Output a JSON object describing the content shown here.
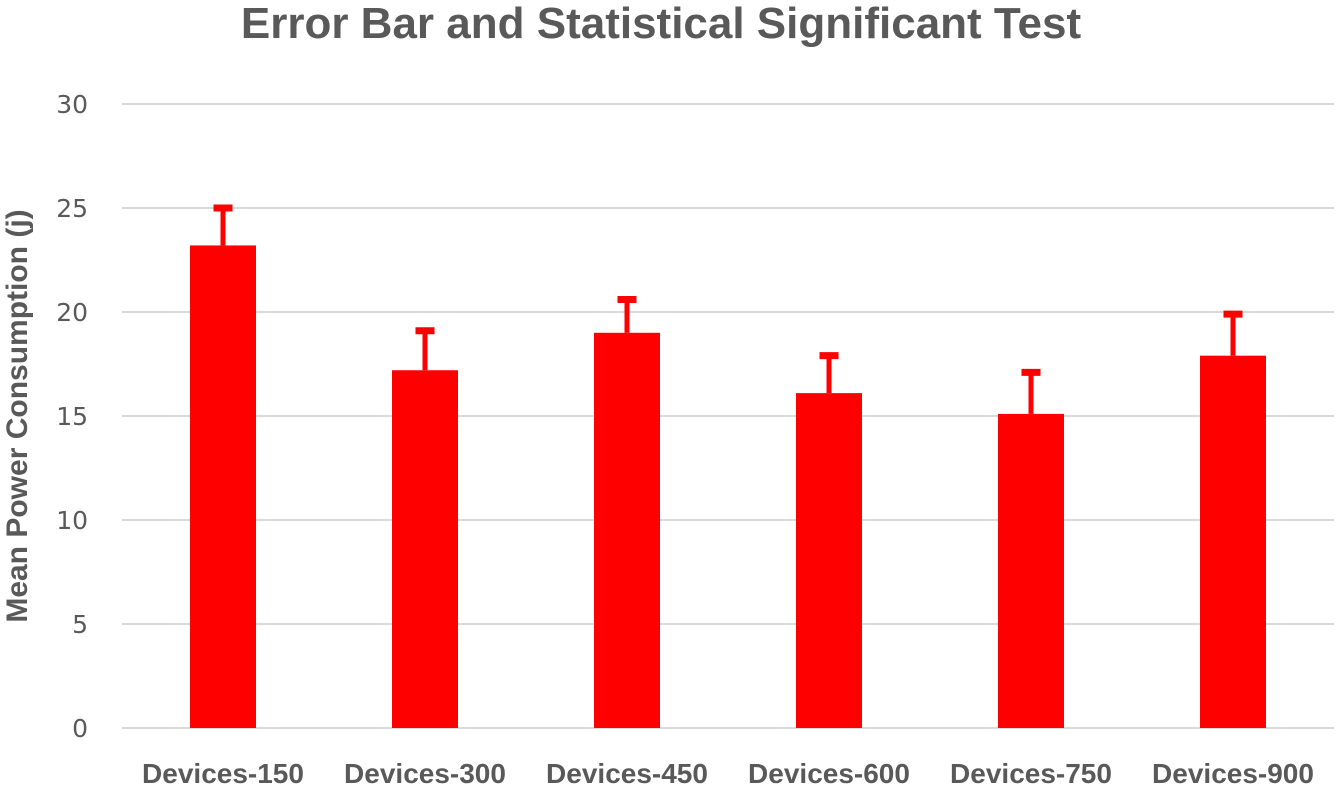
{
  "chart_data": {
    "type": "bar",
    "title": "Error Bar and Statistical Significant Test",
    "xlabel": "",
    "ylabel": "Mean Power Consumption (j)",
    "categories": [
      "Devices-150",
      "Devices-300",
      "Devices-450",
      "Devices-600",
      "Devices-750",
      "Devices-900"
    ],
    "values": [
      23.2,
      17.2,
      19.0,
      16.1,
      15.1,
      17.9
    ],
    "error_plus": [
      1.8,
      1.9,
      1.6,
      1.8,
      2.0,
      2.0
    ],
    "ylim": [
      0,
      30
    ],
    "yticks": [
      "0",
      "5",
      "10",
      "15",
      "20",
      "25",
      "30"
    ],
    "grid": true,
    "legend": "none",
    "colors": {
      "bar": "#ff0000",
      "error_bar": "#ff0000",
      "grid": "#d9d9d9",
      "text": "#595959"
    }
  }
}
